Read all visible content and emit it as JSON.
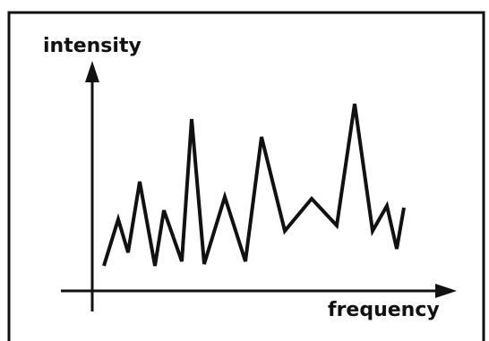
{
  "axes": {
    "y_label": "intensity",
    "x_label": "frequency"
  }
}
